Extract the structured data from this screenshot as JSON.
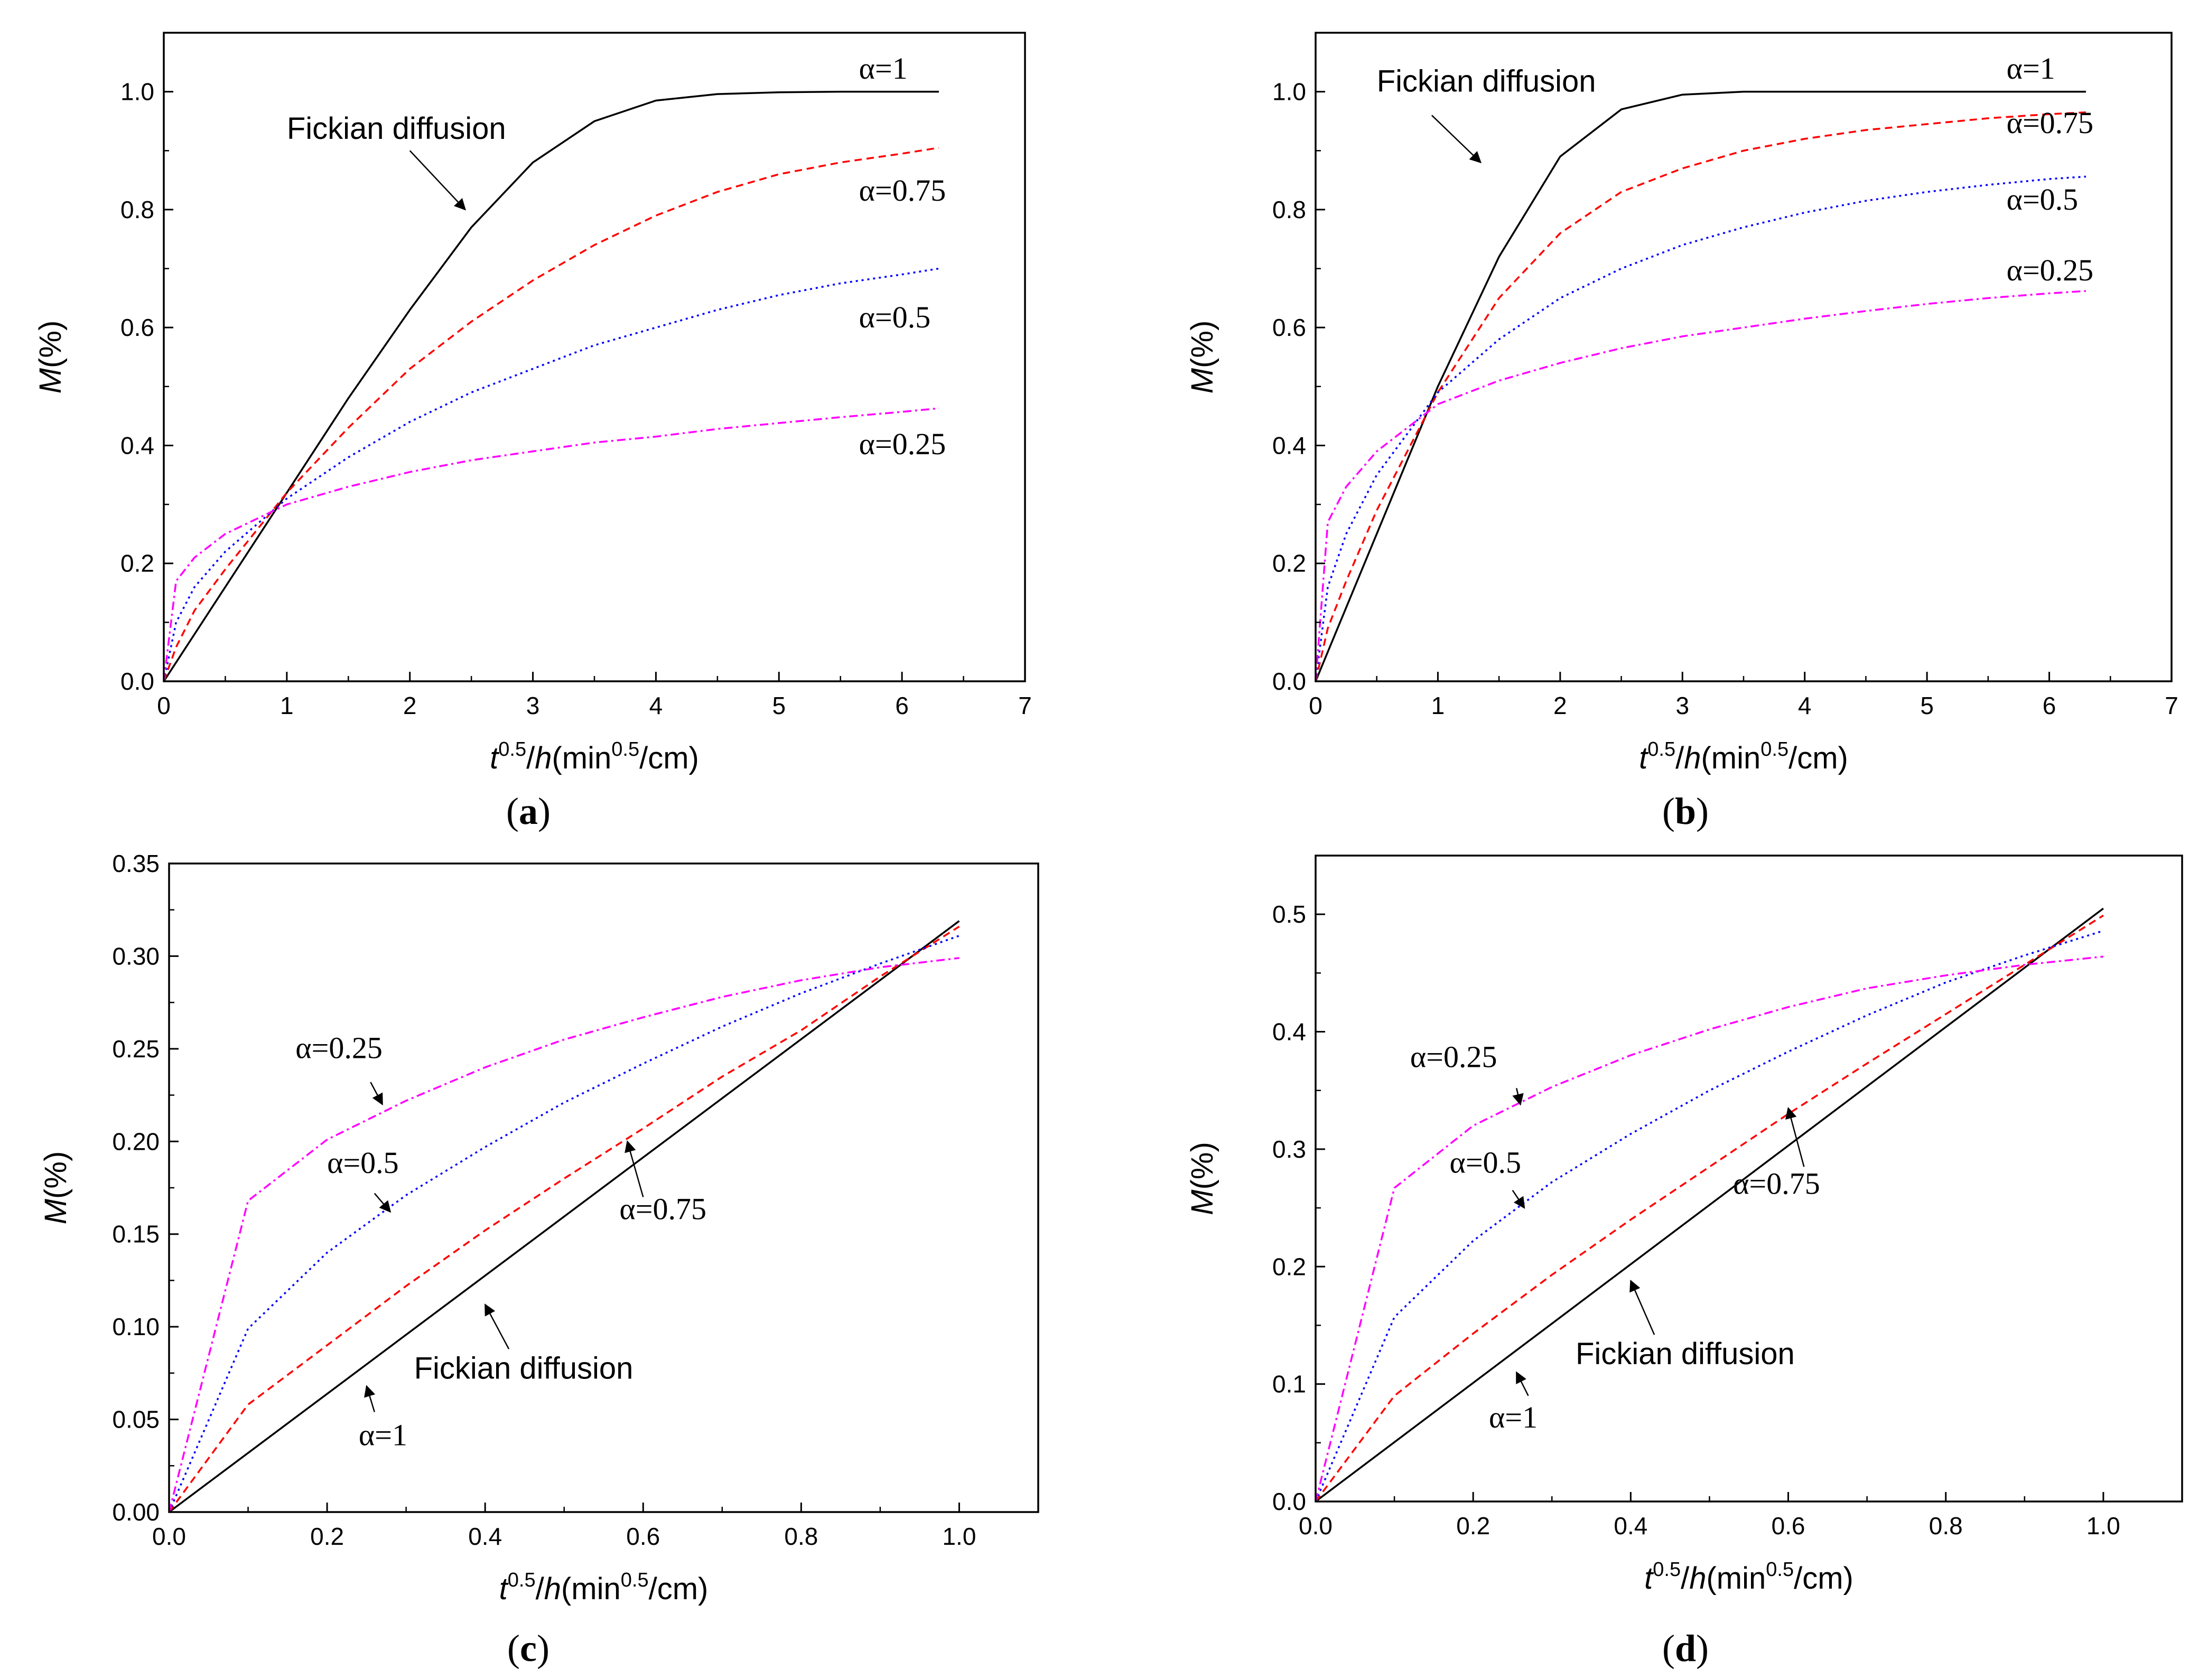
{
  "chart_data": [
    {
      "panel": "(a)",
      "type": "line",
      "xlabel": "t^0.5/h(min^0.5/cm)",
      "ylabel": "M(%)",
      "xlim": [
        0,
        7
      ],
      "ylim": [
        0,
        1.1
      ],
      "x_ticks": [
        0,
        1,
        2,
        3,
        4,
        5,
        6,
        7
      ],
      "y_ticks": [
        0.0,
        0.2,
        0.4,
        0.6,
        0.8,
        1.0
      ],
      "x_tick_labels": [
        "0",
        "1",
        "2",
        "3",
        "4",
        "5",
        "6",
        "7"
      ],
      "y_tick_labels": [
        "0.0",
        "0.2",
        "0.4",
        "0.6",
        "0.8",
        "1.0"
      ],
      "series": [
        {
          "name": "α=1",
          "color": "#000000",
          "dash": "solid",
          "x": [
            0,
            0.5,
            1,
            1.5,
            2,
            2.5,
            3,
            3.5,
            4,
            4.5,
            5,
            5.5,
            6,
            6.3
          ],
          "y": [
            0,
            0.16,
            0.32,
            0.48,
            0.63,
            0.77,
            0.88,
            0.95,
            0.985,
            0.996,
            0.999,
            1.0,
            1.0,
            1.0
          ]
        },
        {
          "name": "α=0.75",
          "color": "#ff0000",
          "dash": "dashed",
          "x": [
            0,
            0.1,
            0.25,
            0.5,
            1,
            1.5,
            2,
            2.5,
            3,
            3.5,
            4,
            4.5,
            5,
            5.5,
            6,
            6.3
          ],
          "y": [
            0,
            0.058,
            0.12,
            0.19,
            0.32,
            0.43,
            0.53,
            0.61,
            0.68,
            0.74,
            0.79,
            0.83,
            0.86,
            0.88,
            0.895,
            0.905
          ]
        },
        {
          "name": "α=0.5",
          "color": "#0000ff",
          "dash": "dotted",
          "x": [
            0,
            0.1,
            0.25,
            0.5,
            1,
            1.5,
            2,
            2.5,
            3,
            3.5,
            4,
            4.5,
            5,
            5.5,
            6,
            6.3
          ],
          "y": [
            0,
            0.1,
            0.16,
            0.22,
            0.31,
            0.38,
            0.44,
            0.49,
            0.53,
            0.57,
            0.6,
            0.63,
            0.655,
            0.675,
            0.69,
            0.7
          ]
        },
        {
          "name": "α=0.25",
          "color": "#ff00ff",
          "dash": "dashdot",
          "x": [
            0,
            0.1,
            0.25,
            0.5,
            1,
            1.5,
            2,
            2.5,
            3,
            3.5,
            4,
            4.5,
            5,
            5.5,
            6,
            6.3
          ],
          "y": [
            0,
            0.17,
            0.21,
            0.25,
            0.3,
            0.33,
            0.355,
            0.375,
            0.39,
            0.405,
            0.415,
            0.428,
            0.438,
            0.448,
            0.457,
            0.463
          ]
        }
      ],
      "annotations": [
        {
          "text": "α=1",
          "style": "serif",
          "x": 5.65,
          "y": 1.022
        },
        {
          "text": "α=0.75",
          "style": "serif",
          "x": 5.65,
          "y": 0.815
        },
        {
          "text": "α=0.5",
          "style": "serif",
          "x": 5.65,
          "y": 0.6
        },
        {
          "text": "α=0.25",
          "style": "serif",
          "x": 5.65,
          "y": 0.385
        },
        {
          "text": "Fickian diffusion",
          "style": "sans",
          "x": 1.0,
          "y": 0.92,
          "arrow_from": [
            2.0,
            0.9
          ],
          "arrow_to": [
            2.45,
            0.8
          ]
        }
      ]
    },
    {
      "panel": "(b)",
      "type": "line",
      "xlabel": "t^0.5/h(min^0.5/cm)",
      "ylabel": "M(%)",
      "xlim": [
        0,
        7
      ],
      "ylim": [
        0,
        1.1
      ],
      "x_ticks": [
        0,
        1,
        2,
        3,
        4,
        5,
        6,
        7
      ],
      "y_ticks": [
        0.0,
        0.2,
        0.4,
        0.6,
        0.8,
        1.0
      ],
      "x_tick_labels": [
        "0",
        "1",
        "2",
        "3",
        "4",
        "5",
        "6",
        "7"
      ],
      "y_tick_labels": [
        "0.0",
        "0.2",
        "0.4",
        "0.6",
        "0.8",
        "1.0"
      ],
      "series": [
        {
          "name": "α=1",
          "color": "#000000",
          "dash": "solid",
          "x": [
            0,
            0.5,
            1,
            1.5,
            2,
            2.5,
            3,
            3.5,
            4,
            5,
            6,
            6.3
          ],
          "y": [
            0,
            0.25,
            0.5,
            0.72,
            0.89,
            0.97,
            0.995,
            1.0,
            1.0,
            1.0,
            1.0,
            1.0
          ]
        },
        {
          "name": "α=0.75",
          "color": "#ff0000",
          "dash": "dashed",
          "x": [
            0,
            0.1,
            0.25,
            0.5,
            1,
            1.5,
            2,
            2.5,
            3,
            3.5,
            4,
            4.5,
            5,
            5.5,
            6,
            6.3
          ],
          "y": [
            0,
            0.09,
            0.17,
            0.29,
            0.49,
            0.65,
            0.76,
            0.83,
            0.87,
            0.9,
            0.92,
            0.935,
            0.945,
            0.955,
            0.962,
            0.965
          ]
        },
        {
          "name": "α=0.5",
          "color": "#0000ff",
          "dash": "dotted",
          "x": [
            0,
            0.1,
            0.25,
            0.5,
            1,
            1.5,
            2,
            2.5,
            3,
            3.5,
            4,
            4.5,
            5,
            5.5,
            6,
            6.3
          ],
          "y": [
            0,
            0.16,
            0.25,
            0.35,
            0.49,
            0.58,
            0.65,
            0.7,
            0.74,
            0.77,
            0.795,
            0.815,
            0.83,
            0.842,
            0.852,
            0.856
          ]
        },
        {
          "name": "α=0.25",
          "color": "#ff00ff",
          "dash": "dashdot",
          "x": [
            0,
            0.1,
            0.25,
            0.5,
            1,
            1.5,
            2,
            2.5,
            3,
            3.5,
            4,
            4.5,
            5,
            5.5,
            6,
            6.3
          ],
          "y": [
            0,
            0.27,
            0.33,
            0.39,
            0.47,
            0.51,
            0.54,
            0.565,
            0.585,
            0.6,
            0.615,
            0.628,
            0.64,
            0.65,
            0.658,
            0.662
          ]
        }
      ],
      "annotations": [
        {
          "text": "α=1",
          "style": "serif",
          "x": 5.65,
          "y": 1.022
        },
        {
          "text": "α=0.75",
          "style": "serif",
          "x": 5.65,
          "y": 0.93
        },
        {
          "text": "α=0.5",
          "style": "serif",
          "x": 5.65,
          "y": 0.8
        },
        {
          "text": "α=0.25",
          "style": "serif",
          "x": 5.65,
          "y": 0.68
        },
        {
          "text": "Fickian diffusion",
          "style": "sans",
          "x": 0.5,
          "y": 1.0,
          "arrow_from": [
            0.95,
            0.96
          ],
          "arrow_to": [
            1.35,
            0.88
          ]
        }
      ]
    },
    {
      "panel": "(c)",
      "type": "line",
      "xlabel": "t^0.5/h(min^0.5/cm)",
      "ylabel": "M(%)",
      "xlim": [
        0,
        1.1
      ],
      "ylim": [
        0,
        0.35
      ],
      "x_ticks": [
        0.0,
        0.2,
        0.4,
        0.6,
        0.8,
        1.0
      ],
      "y_ticks": [
        0.0,
        0.05,
        0.1,
        0.15,
        0.2,
        0.25,
        0.3,
        0.35
      ],
      "x_tick_labels": [
        "0.0",
        "0.2",
        "0.4",
        "0.6",
        "0.8",
        "1.0"
      ],
      "y_tick_labels": [
        "0.00",
        "0.05",
        "0.10",
        "0.15",
        "0.20",
        "0.25",
        "0.30",
        "0.35"
      ],
      "series": [
        {
          "name": "α=1",
          "color": "#000000",
          "dash": "solid",
          "x": [
            0,
            1.0
          ],
          "y": [
            0,
            0.319
          ]
        },
        {
          "name": "α=0.75",
          "color": "#ff0000",
          "dash": "dashed",
          "x": [
            0,
            0.1,
            0.2,
            0.3,
            0.4,
            0.5,
            0.6,
            0.7,
            0.8,
            0.9,
            1.0
          ],
          "y": [
            0,
            0.058,
            0.09,
            0.122,
            0.152,
            0.18,
            0.207,
            0.235,
            0.26,
            0.289,
            0.316
          ]
        },
        {
          "name": "α=0.5",
          "color": "#0000ff",
          "dash": "dotted",
          "x": [
            0,
            0.1,
            0.2,
            0.3,
            0.4,
            0.5,
            0.6,
            0.7,
            0.8,
            0.9,
            1.0
          ],
          "y": [
            0,
            0.099,
            0.14,
            0.171,
            0.197,
            0.221,
            0.242,
            0.262,
            0.28,
            0.296,
            0.311
          ]
        },
        {
          "name": "α=0.25",
          "color": "#ff00ff",
          "dash": "dashdot",
          "x": [
            0,
            0.1,
            0.2,
            0.3,
            0.4,
            0.5,
            0.6,
            0.7,
            0.8,
            0.9,
            1.0
          ],
          "y": [
            0,
            0.168,
            0.201,
            0.222,
            0.24,
            0.255,
            0.267,
            0.278,
            0.287,
            0.294,
            0.299
          ]
        }
      ],
      "annotations": [
        {
          "text": "α=0.25",
          "style": "serif",
          "x": 0.16,
          "y": 0.245,
          "arrow_from": [
            0.255,
            0.232
          ],
          "arrow_to": [
            0.27,
            0.22
          ]
        },
        {
          "text": "α=0.5",
          "style": "serif",
          "x": 0.2,
          "y": 0.183,
          "arrow_from": [
            0.26,
            0.172
          ],
          "arrow_to": [
            0.28,
            0.162
          ]
        },
        {
          "text": "α=0.75",
          "style": "serif",
          "x": 0.57,
          "y": 0.158,
          "arrow_from": [
            0.6,
            0.17
          ],
          "arrow_to": [
            0.58,
            0.2
          ]
        },
        {
          "text": "Fickian diffusion",
          "style": "sans",
          "x": 0.31,
          "y": 0.072,
          "arrow_from": [
            0.43,
            0.088
          ],
          "arrow_to": [
            0.4,
            0.112
          ]
        },
        {
          "text": "α=1",
          "style": "serif",
          "x": 0.24,
          "y": 0.036,
          "arrow_from": [
            0.26,
            0.054
          ],
          "arrow_to": [
            0.25,
            0.068
          ]
        }
      ]
    },
    {
      "panel": "(d)",
      "type": "line",
      "xlabel": "t^0.5/h(min^0.5/cm)",
      "ylabel": "M(%)",
      "xlim": [
        0,
        1.1
      ],
      "ylim": [
        0,
        0.55
      ],
      "x_ticks": [
        0.0,
        0.2,
        0.4,
        0.6,
        0.8,
        1.0
      ],
      "y_ticks": [
        0.0,
        0.1,
        0.2,
        0.3,
        0.4,
        0.5
      ],
      "x_tick_labels": [
        "0.0",
        "0.2",
        "0.4",
        "0.6",
        "0.8",
        "1.0"
      ],
      "y_tick_labels": [
        "0.0",
        "0.1",
        "0.2",
        "0.3",
        "0.4",
        "0.5"
      ],
      "series": [
        {
          "name": "α=1",
          "color": "#000000",
          "dash": "solid",
          "x": [
            0,
            1.0
          ],
          "y": [
            0,
            0.505
          ]
        },
        {
          "name": "α=0.75",
          "color": "#ff0000",
          "dash": "dashed",
          "x": [
            0,
            0.1,
            0.2,
            0.3,
            0.4,
            0.5,
            0.6,
            0.7,
            0.8,
            0.9,
            1.0
          ],
          "y": [
            0,
            0.09,
            0.143,
            0.193,
            0.24,
            0.285,
            0.33,
            0.373,
            0.415,
            0.457,
            0.499
          ]
        },
        {
          "name": "α=0.5",
          "color": "#0000ff",
          "dash": "dotted",
          "x": [
            0,
            0.1,
            0.2,
            0.3,
            0.4,
            0.5,
            0.6,
            0.7,
            0.8,
            0.9,
            1.0
          ],
          "y": [
            0,
            0.157,
            0.222,
            0.272,
            0.313,
            0.35,
            0.383,
            0.414,
            0.442,
            0.465,
            0.486
          ]
        },
        {
          "name": "α=0.25",
          "color": "#ff00ff",
          "dash": "dashdot",
          "x": [
            0,
            0.1,
            0.2,
            0.3,
            0.4,
            0.5,
            0.6,
            0.7,
            0.8,
            0.9,
            1.0
          ],
          "y": [
            0,
            0.267,
            0.32,
            0.353,
            0.38,
            0.402,
            0.421,
            0.437,
            0.448,
            0.457,
            0.464
          ]
        }
      ],
      "annotations": [
        {
          "text": "α=0.25",
          "style": "serif",
          "x": 0.12,
          "y": 0.37,
          "arrow_from": [
            0.255,
            0.352
          ],
          "arrow_to": [
            0.26,
            0.338
          ]
        },
        {
          "text": "α=0.5",
          "style": "serif",
          "x": 0.17,
          "y": 0.28,
          "arrow_from": [
            0.25,
            0.265
          ],
          "arrow_to": [
            0.265,
            0.25
          ]
        },
        {
          "text": "α=0.75",
          "style": "serif",
          "x": 0.53,
          "y": 0.262,
          "arrow_from": [
            0.62,
            0.285
          ],
          "arrow_to": [
            0.6,
            0.335
          ]
        },
        {
          "text": "Fickian diffusion",
          "style": "sans",
          "x": 0.33,
          "y": 0.117,
          "arrow_from": [
            0.43,
            0.142
          ],
          "arrow_to": [
            0.4,
            0.188
          ]
        },
        {
          "text": "α=1",
          "style": "serif",
          "x": 0.22,
          "y": 0.063,
          "arrow_from": [
            0.27,
            0.09
          ],
          "arrow_to": [
            0.255,
            0.11
          ]
        }
      ]
    }
  ]
}
